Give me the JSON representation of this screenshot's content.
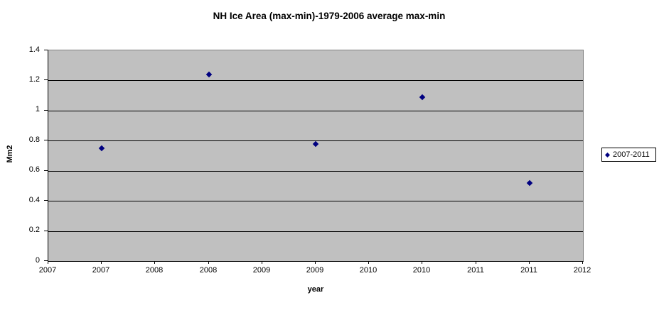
{
  "chart_data": {
    "type": "scatter",
    "title": "NH Ice Area (max-min)-1979-2006 average max-min",
    "x_axis": {
      "title": "year",
      "min": 2007,
      "max": 2012,
      "tick_step": 0.5,
      "tick_labels": [
        "2007",
        "2007",
        "2008",
        "2008",
        "2009",
        "2009",
        "2010",
        "2010",
        "2011",
        "2011",
        "2012"
      ]
    },
    "y_axis": {
      "title": "Mm2",
      "min": 0,
      "max": 1.4,
      "tick_step": 0.2,
      "tick_labels": [
        "0",
        "0.2",
        "0.4",
        "0.6",
        "0.8",
        "1",
        "1.2",
        "1.4"
      ]
    },
    "legend": {
      "position": "right",
      "entries": [
        {
          "label": "2007-2011",
          "marker": "diamond",
          "color": "#000080"
        }
      ]
    },
    "series": [
      {
        "name": "2007-2011",
        "marker": "diamond",
        "color": "#000080",
        "years": [
          2007,
          2008,
          2009,
          2010,
          2011
        ],
        "values": [
          0.75,
          1.24,
          0.78,
          1.09,
          0.52
        ],
        "point_tick_indices": [
          1,
          3,
          5,
          7,
          9
        ]
      }
    ],
    "colors": {
      "background": "#ffffff",
      "plot_background": "#c0c0c0",
      "gridline": "#000000",
      "axis_line": "#000000",
      "plot_border": "#808080",
      "marker": "#000080",
      "text": "#000000"
    },
    "grid": "horizontal-on"
  }
}
